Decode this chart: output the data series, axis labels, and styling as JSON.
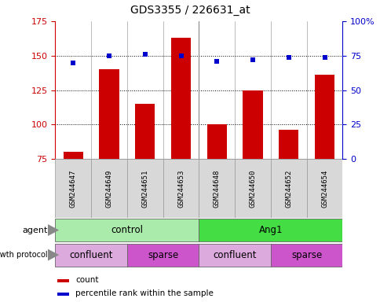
{
  "title": "GDS3355 / 226631_at",
  "samples": [
    "GSM244647",
    "GSM244649",
    "GSM244651",
    "GSM244653",
    "GSM244648",
    "GSM244650",
    "GSM244652",
    "GSM244654"
  ],
  "count_values": [
    80,
    140,
    115,
    163,
    100,
    125,
    96,
    136
  ],
  "percentile_values": [
    70,
    75,
    76,
    75,
    71,
    72,
    74,
    74
  ],
  "left_ylim": [
    75,
    175
  ],
  "left_yticks": [
    75,
    100,
    125,
    150,
    175
  ],
  "right_ylim": [
    0,
    100
  ],
  "right_yticks": [
    0,
    25,
    50,
    75,
    100
  ],
  "right_yticklabels": [
    "0",
    "25",
    "50",
    "75",
    "100%"
  ],
  "bar_color": "#cc0000",
  "dot_color": "#0000cc",
  "left_tick_color": "#cc0000",
  "right_tick_color": "#0000cc",
  "agent_groups": [
    {
      "label": "control",
      "start": 0,
      "end": 4,
      "color": "#aaeaaa"
    },
    {
      "label": "Ang1",
      "start": 4,
      "end": 8,
      "color": "#44dd44"
    }
  ],
  "growth_groups": [
    {
      "label": "confluent",
      "start": 0,
      "end": 2,
      "color": "#ddaadd"
    },
    {
      "label": "sparse",
      "start": 2,
      "end": 4,
      "color": "#cc55cc"
    },
    {
      "label": "confluent",
      "start": 4,
      "end": 6,
      "color": "#ddaadd"
    },
    {
      "label": "sparse",
      "start": 6,
      "end": 8,
      "color": "#cc55cc"
    }
  ],
  "agent_label": "agent",
  "growth_label": "growth protocol",
  "legend_count_label": "count",
  "legend_pct_label": "percentile rank within the sample",
  "sample_bg_color": "#d8d8d8",
  "plot_bg": "#ffffff",
  "fig_bg": "#ffffff",
  "grid_dotted_ticks": [
    100,
    125,
    150
  ],
  "arrow_color": "#888888"
}
